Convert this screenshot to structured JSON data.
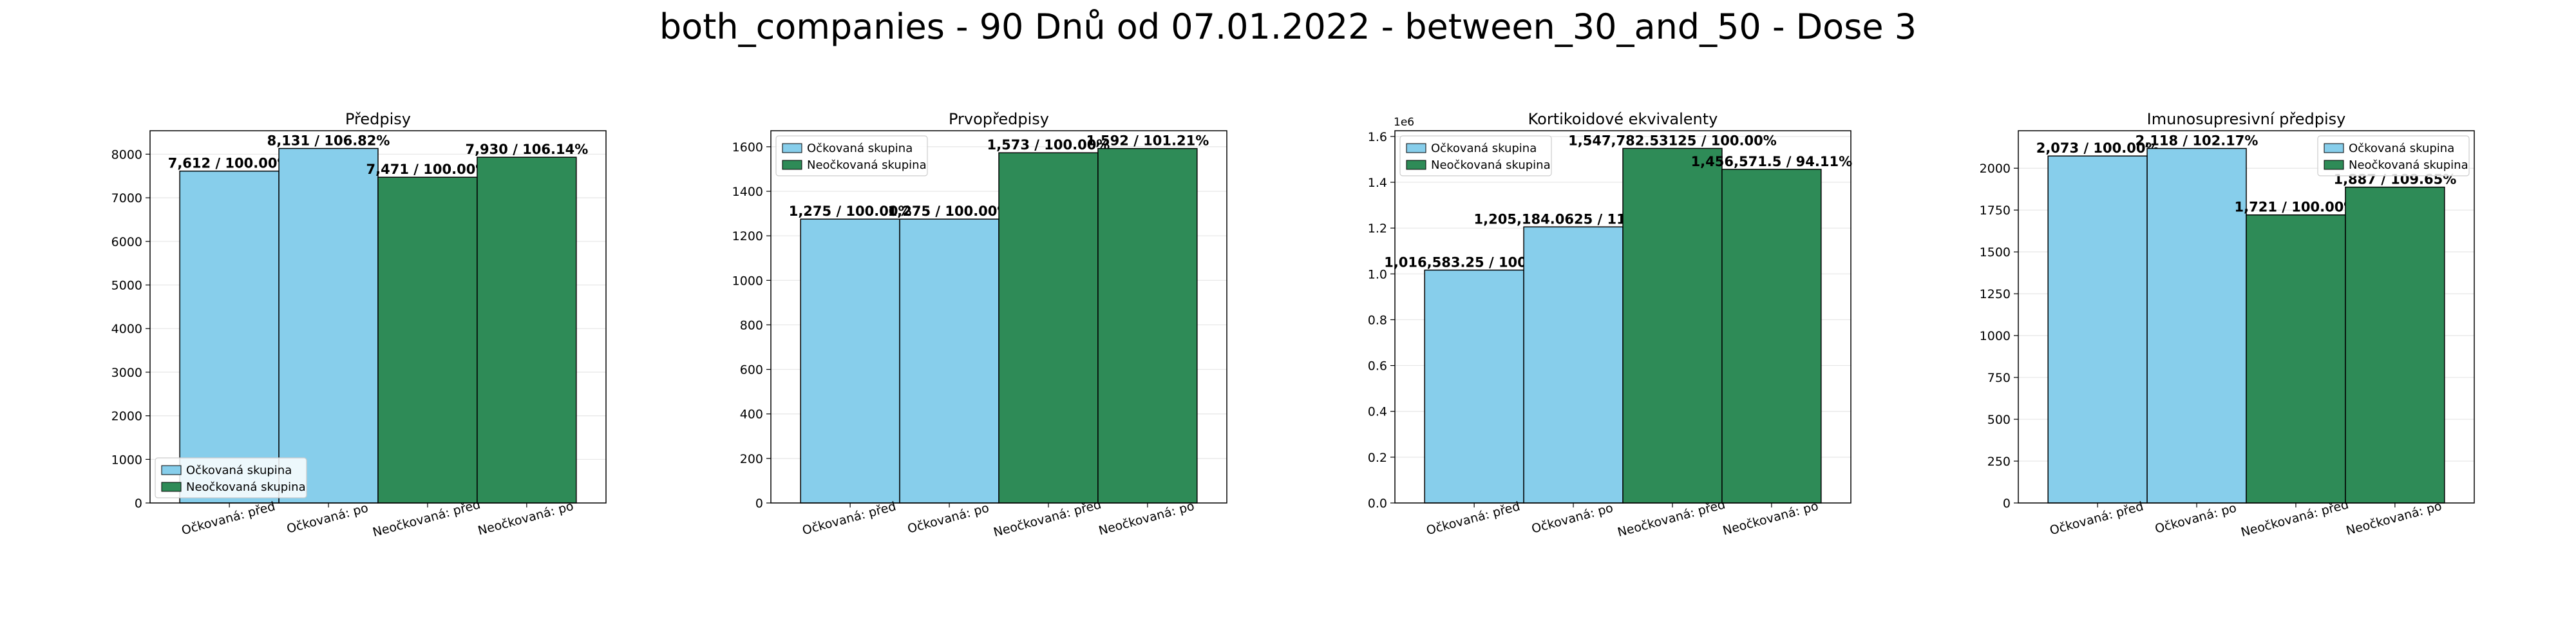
{
  "figure": {
    "title": "both_companies - 90 Dnů od 07.01.2022 - between_30_and_50 - Dose 3",
    "colors": {
      "vaccinated": "#87CEEB",
      "unvaccinated": "#2E8B57",
      "edge": "#000000",
      "grid": "#e6e6e6"
    }
  },
  "chart_data": [
    {
      "type": "bar",
      "title": "Předpisy",
      "categories": [
        "Očkovaná: před",
        "Očkovaná: po",
        "Neočkovaná: před",
        "Neočkovaná: po"
      ],
      "values": [
        7612,
        8131,
        7471,
        7930
      ],
      "bar_colors": [
        "vaccinated",
        "vaccinated",
        "unvaccinated",
        "unvaccinated"
      ],
      "data_labels": [
        "7,612 / 100.00%",
        "8,131 / 106.82%",
        "7,471 / 100.00%",
        "7,930 / 106.14%"
      ],
      "ylim": [
        0,
        8538
      ],
      "yticks": [
        0,
        1000,
        2000,
        3000,
        4000,
        5000,
        6000,
        7000,
        8000
      ],
      "ytick_labels": [
        "0",
        "1000",
        "2000",
        "3000",
        "4000",
        "5000",
        "6000",
        "7000",
        "8000"
      ],
      "offset_label": "",
      "legend": {
        "placement": "lower-left",
        "entries": [
          "Očkovaná skupina",
          "Neočkovaná skupina"
        ]
      },
      "grid": "y"
    },
    {
      "type": "bar",
      "title": "Prvopředpisy",
      "categories": [
        "Očkovaná: před",
        "Očkovaná: po",
        "Neočkovaná: před",
        "Neočkovaná: po"
      ],
      "values": [
        1275,
        1275,
        1573,
        1592
      ],
      "bar_colors": [
        "vaccinated",
        "vaccinated",
        "unvaccinated",
        "unvaccinated"
      ],
      "data_labels": [
        "1,275 / 100.00%",
        "1,275 / 100.00%",
        "1,573 / 100.00%",
        "1,592 / 101.21%"
      ],
      "ylim": [
        0,
        1672
      ],
      "yticks": [
        0,
        200,
        400,
        600,
        800,
        1000,
        1200,
        1400,
        1600
      ],
      "ytick_labels": [
        "0",
        "200",
        "400",
        "600",
        "800",
        "1000",
        "1200",
        "1400",
        "1600"
      ],
      "offset_label": "",
      "legend": {
        "placement": "upper-left",
        "entries": [
          "Očkovaná skupina",
          "Neočkovaná skupina"
        ]
      },
      "grid": "y"
    },
    {
      "type": "bar",
      "title": "Kortikoidové ekvivalenty",
      "categories": [
        "Očkovaná: před",
        "Očkovaná: po",
        "Neočkovaná: před",
        "Neočkovaná: po"
      ],
      "values": [
        1016583.25,
        1205184.0625,
        1547782.53125,
        1456571.5
      ],
      "bar_colors": [
        "vaccinated",
        "vaccinated",
        "unvaccinated",
        "unvaccinated"
      ],
      "data_labels": [
        "1,016,583.25 / 100.00%",
        "1,205,184.0625 / 118.55%",
        "1,547,782.53125 / 100.00%",
        "1,456,571.5 / 94.11%"
      ],
      "ylim": [
        0,
        1625000
      ],
      "yticks": [
        0,
        200000,
        400000,
        600000,
        800000,
        1000000,
        1200000,
        1400000,
        1600000
      ],
      "ytick_labels": [
        "0.0",
        "0.2",
        "0.4",
        "0.6",
        "0.8",
        "1.0",
        "1.2",
        "1.4",
        "1.6"
      ],
      "offset_label": "1e6",
      "legend": {
        "placement": "upper-left",
        "entries": [
          "Očkovaná skupina",
          "Neočkovaná skupina"
        ]
      },
      "grid": "y"
    },
    {
      "type": "bar",
      "title": "Imunosupresivní předpisy",
      "categories": [
        "Očkovaná: před",
        "Očkovaná: po",
        "Neočkovaná: před",
        "Neočkovaná: po"
      ],
      "values": [
        2073,
        2118,
        1721,
        1887
      ],
      "bar_colors": [
        "vaccinated",
        "vaccinated",
        "unvaccinated",
        "unvaccinated"
      ],
      "data_labels": [
        "2,073 / 100.00%",
        "2,118 / 102.17%",
        "1,721 / 100.00%",
        "1,887 / 109.65%"
      ],
      "ylim": [
        0,
        2224
      ],
      "yticks": [
        0,
        250,
        500,
        750,
        1000,
        1250,
        1500,
        1750,
        2000
      ],
      "ytick_labels": [
        "0",
        "250",
        "500",
        "750",
        "1000",
        "1250",
        "1500",
        "1750",
        "2000"
      ],
      "offset_label": "",
      "legend": {
        "placement": "upper-right",
        "entries": [
          "Očkovaná skupina",
          "Neočkovaná skupina"
        ]
      },
      "grid": "y"
    }
  ]
}
